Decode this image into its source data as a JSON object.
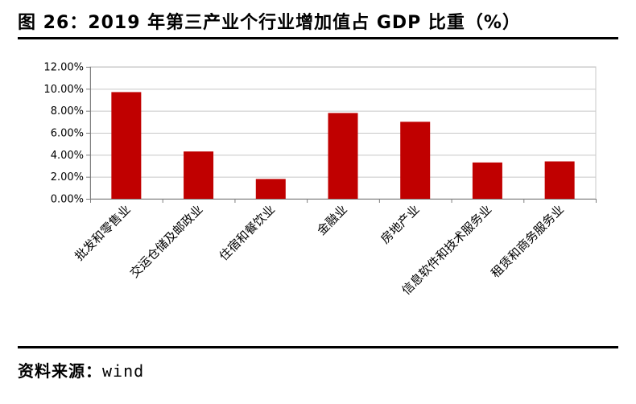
{
  "figure": {
    "title": "图 26：2019 年第三产业个行业增加值占 GDP 比重（%）",
    "source_label": "资料来源：",
    "source_value": "wind"
  },
  "colors": {
    "bar": "#c00000",
    "grid": "#c8c8c8",
    "axis": "#7f7f7f",
    "rule": "#000000"
  },
  "chart_data": {
    "type": "bar",
    "title": "",
    "xlabel": "",
    "ylabel": "",
    "categories": [
      "批发和零售业",
      "交运仓储及邮政业",
      "住宿和餐饮业",
      "金融业",
      "房地产业",
      "信息软件和技术服务业",
      "租赁和商务服务业"
    ],
    "values": [
      9.7,
      4.3,
      1.8,
      7.8,
      7.0,
      3.3,
      3.4
    ],
    "ylim": [
      0,
      12
    ],
    "yticks": [
      0,
      2,
      4,
      6,
      8,
      10,
      12
    ],
    "ytick_labels": [
      "0.00%",
      "2.00%",
      "4.00%",
      "6.00%",
      "8.00%",
      "10.00%",
      "12.00%"
    ],
    "grid": true,
    "legend": "none"
  }
}
